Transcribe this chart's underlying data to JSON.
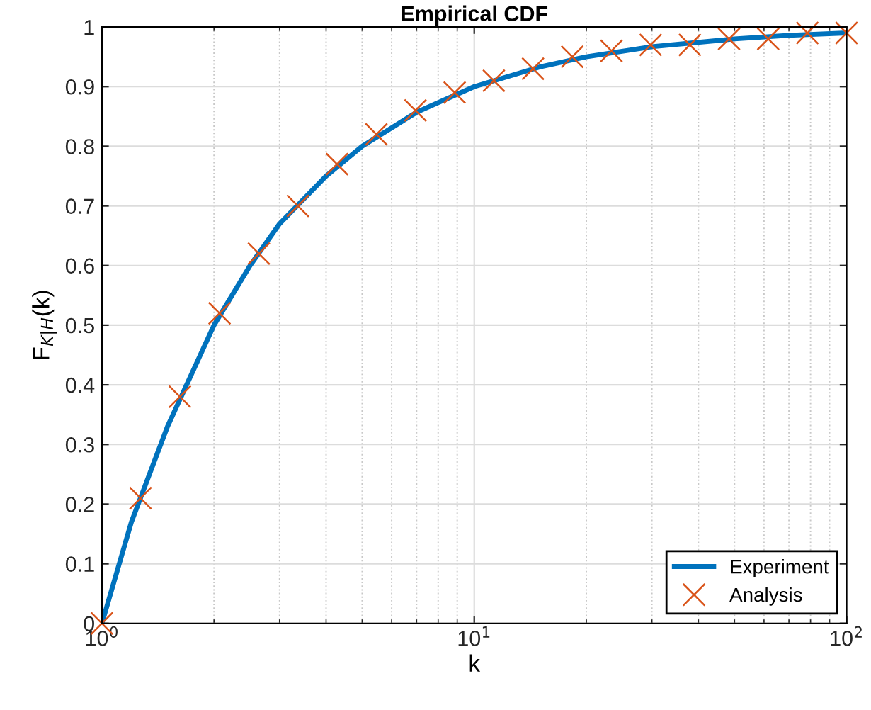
{
  "chart_data": {
    "type": "line",
    "title": "Empirical CDF",
    "xlabel": "k",
    "ylabel": "F$_{K|H}$(k)",
    "log": "x",
    "xlim": [
      1,
      100
    ],
    "xticks": [
      {
        "value": 1,
        "label": "10$^{0}$"
      },
      {
        "value": 10,
        "label": "10$^{1}$"
      },
      {
        "value": 100,
        "label": "10$^{2}$"
      }
    ],
    "ylim": [
      0,
      1
    ],
    "yticks": [
      0,
      0.1,
      0.2,
      0.3,
      0.4,
      0.5,
      0.6,
      0.7,
      0.8,
      0.9,
      1
    ],
    "grid": true,
    "legend": "bottom right",
    "series": [
      {
        "name": "Experiment",
        "color": "#0072bd",
        "marker": "none",
        "x": [
          1,
          1.2,
          1.5,
          2,
          2.5,
          3,
          4,
          5,
          7,
          10,
          15,
          20,
          30,
          50,
          70,
          100
        ],
        "values": [
          0,
          0.17,
          0.33,
          0.5,
          0.6,
          0.67,
          0.75,
          0.8,
          0.857,
          0.9,
          0.933,
          0.95,
          0.967,
          0.98,
          0.986,
          0.99
        ]
      },
      {
        "name": "Analysis",
        "type": "scatter",
        "color": "#d95319",
        "marker": "cross",
        "x": [
          1,
          1.27,
          1.62,
          2.07,
          2.64,
          3.36,
          4.28,
          5.46,
          6.95,
          8.86,
          11.29,
          14.38,
          18.33,
          23.36,
          29.76,
          37.93,
          48.33,
          61.58,
          78.48,
          100
        ],
        "values": [
          0,
          0.21,
          0.38,
          0.52,
          0.62,
          0.7,
          0.77,
          0.82,
          0.86,
          0.89,
          0.91,
          0.93,
          0.95,
          0.96,
          0.97,
          0.97,
          0.98,
          0.98,
          0.99,
          0.99
        ]
      }
    ]
  }
}
